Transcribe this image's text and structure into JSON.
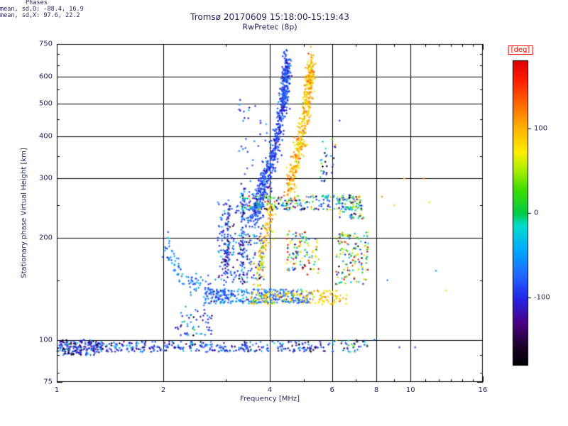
{
  "page": {
    "background": "#ffffff"
  },
  "colors": {
    "text": "#262660",
    "grid": "#000000",
    "frame": "#000000",
    "deg_label": "#ff0000"
  },
  "chart_data": {
    "type": "scatter",
    "title": "Tromsø 20170609 15:18:00-15:19:43",
    "subtitle": "RwPretec (8p)",
    "xlabel": "Frequency [MHz]",
    "ylabel": "Stationary phase Virtual Height [km]",
    "x_scale": "log",
    "y_scale": "log",
    "xlim": [
      1,
      16
    ],
    "ylim": [
      75,
      750
    ],
    "x_ticks": [
      1,
      2,
      4,
      6,
      8,
      10,
      16
    ],
    "x_gridlines": [
      2,
      4,
      6,
      8,
      10
    ],
    "x_minor_ticks": [
      3,
      5,
      7,
      9,
      11,
      12,
      13,
      14,
      15
    ],
    "y_ticks": [
      75,
      100,
      200,
      300,
      400,
      500,
      600,
      750
    ],
    "y_gridlines": [
      100,
      200,
      300,
      400,
      500,
      600
    ],
    "y_minor_ticks": [
      80,
      90,
      150,
      250,
      350,
      450,
      550,
      650,
      700
    ],
    "grid": true,
    "legend_position": "none",
    "stats": {
      "header": "Phases",
      "line_o": "mean, sd,O: -88.4, 16.9",
      "line_x": "mean, sd,X:  97.6, 22.2"
    },
    "colorbar": {
      "label": "[deg]",
      "min": -180,
      "max": 180,
      "ticks": [
        100,
        0,
        -100
      ],
      "stops": [
        [
          0.0,
          "#000000"
        ],
        [
          0.06,
          "#1a0026"
        ],
        [
          0.14,
          "#4b0082"
        ],
        [
          0.22,
          "#2424e6"
        ],
        [
          0.3,
          "#1e6aff"
        ],
        [
          0.38,
          "#00aaff"
        ],
        [
          0.46,
          "#00ddcc"
        ],
        [
          0.5,
          "#00cc44"
        ],
        [
          0.58,
          "#44dd00"
        ],
        [
          0.64,
          "#aaee00"
        ],
        [
          0.7,
          "#ffee00"
        ],
        [
          0.78,
          "#ffb300"
        ],
        [
          0.86,
          "#ff6600"
        ],
        [
          0.93,
          "#ff2200"
        ],
        [
          1.0,
          "#dd0000"
        ]
      ]
    },
    "traces": [
      {
        "name": "e-region-band",
        "kind": "band",
        "n": 380,
        "f": [
          1.0,
          5.9
        ],
        "h": [
          92,
          99
        ],
        "phase": {
          "mean": -95,
          "sd": 35
        }
      },
      {
        "name": "e-region-left-cluster",
        "kind": "band",
        "n": 140,
        "f": [
          1.0,
          1.35
        ],
        "h": [
          90,
          100
        ],
        "phase": {
          "mean": -110,
          "sd": 40
        }
      },
      {
        "name": "e-band-right-ext",
        "kind": "band",
        "n": 40,
        "f": [
          5.9,
          7.6
        ],
        "h": [
          92,
          100
        ],
        "phase": {
          "mean": -60,
          "sd": 70
        }
      },
      {
        "name": "low-scatter-2mhz",
        "kind": "band",
        "n": 55,
        "f": [
          2.15,
          2.75
        ],
        "h": [
          103,
          126
        ],
        "phase": {
          "mean": -100,
          "sd": 45
        }
      },
      {
        "name": "descending-curve",
        "kind": "path",
        "n": 90,
        "anchors": [
          [
            2.02,
            192
          ],
          [
            2.1,
            174
          ],
          [
            2.2,
            160
          ],
          [
            2.35,
            150
          ],
          [
            2.55,
            143
          ],
          [
            2.8,
            138
          ]
        ],
        "f_jitter": 0.006,
        "h_jitter": 0.02,
        "phase": {
          "mean": -62,
          "sd": 18
        }
      },
      {
        "name": "mid-band-cyan",
        "kind": "band",
        "n": 300,
        "f": [
          2.6,
          5.2
        ],
        "h": [
          128,
          141
        ],
        "phase": {
          "mean": -70,
          "sd": 28
        }
      },
      {
        "name": "mid-band-yellow",
        "kind": "band",
        "n": 150,
        "f": [
          3.5,
          6.6
        ],
        "h": [
          127,
          140
        ],
        "phase": {
          "mean": 85,
          "sd": 30
        }
      },
      {
        "name": "f-cloud",
        "kind": "band",
        "n": 240,
        "f": [
          2.85,
          3.85
        ],
        "h": [
          148,
          255
        ],
        "phase": {
          "mean": -88,
          "sd": 35
        }
      },
      {
        "name": "streak-3-0",
        "kind": "path",
        "n": 70,
        "anchors": [
          [
            3.02,
            150
          ],
          [
            3.05,
            230
          ]
        ],
        "f_jitter": 0.004,
        "h_jitter": 0.03,
        "phase": {
          "mean": -95,
          "sd": 28
        }
      },
      {
        "name": "streak-3-35",
        "kind": "path",
        "n": 70,
        "anchors": [
          [
            3.33,
            150
          ],
          [
            3.38,
            262
          ]
        ],
        "f_jitter": 0.004,
        "h_jitter": 0.03,
        "phase": {
          "mean": -90,
          "sd": 28
        }
      },
      {
        "name": "yellow-lower-branch",
        "kind": "path",
        "n": 120,
        "anchors": [
          [
            3.62,
            148
          ],
          [
            3.75,
            165
          ],
          [
            3.88,
            190
          ],
          [
            3.98,
            225
          ],
          [
            4.06,
            258
          ]
        ],
        "f_jitter": 0.006,
        "h_jitter": 0.03,
        "phase": {
          "mean": 88,
          "sd": 28
        }
      },
      {
        "name": "o-mode-trace",
        "kind": "path",
        "n": 640,
        "anchors": [
          [
            3.55,
            235
          ],
          [
            3.7,
            258
          ],
          [
            3.85,
            285
          ],
          [
            3.98,
            315
          ],
          [
            4.1,
            352
          ],
          [
            4.2,
            395
          ],
          [
            4.28,
            440
          ],
          [
            4.35,
            490
          ],
          [
            4.4,
            540
          ],
          [
            4.44,
            585
          ],
          [
            4.47,
            625
          ],
          [
            4.49,
            655
          ]
        ],
        "f_jitter": 0.006,
        "h_jitter": 0.025,
        "phase": {
          "mean": -88,
          "sd": 17
        }
      },
      {
        "name": "x-mode-trace",
        "kind": "path",
        "n": 430,
        "anchors": [
          [
            4.5,
            268
          ],
          [
            4.62,
            300
          ],
          [
            4.75,
            340
          ],
          [
            4.87,
            385
          ],
          [
            4.97,
            432
          ],
          [
            5.05,
            480
          ],
          [
            5.11,
            528
          ],
          [
            5.16,
            575
          ],
          [
            5.2,
            615
          ],
          [
            5.22,
            640
          ]
        ],
        "f_jitter": 0.006,
        "h_jitter": 0.025,
        "phase": {
          "mean": 97,
          "sd": 22
        }
      },
      {
        "name": "o-left-sparse",
        "kind": "band",
        "n": 40,
        "f": [
          3.25,
          3.95
        ],
        "h": [
          255,
          520
        ],
        "phase": {
          "mean": -85,
          "sd": 25
        }
      },
      {
        "name": "band-250",
        "kind": "band",
        "n": 230,
        "f": [
          3.3,
          7.2
        ],
        "h": [
          242,
          268
        ],
        "phase": {
          "mean": -30,
          "sd": 85
        }
      },
      {
        "name": "cluster-mid",
        "kind": "band",
        "n": 110,
        "f": [
          4.45,
          5.5
        ],
        "h": [
          155,
          210
        ],
        "phase": {
          "mean": 20,
          "sd": 90
        }
      },
      {
        "name": "cluster-right-low",
        "kind": "band",
        "n": 150,
        "f": [
          6.15,
          7.6
        ],
        "h": [
          145,
          210
        ],
        "phase": {
          "mean": 20,
          "sd": 90
        }
      },
      {
        "name": "cluster-right-mid",
        "kind": "band",
        "n": 60,
        "f": [
          6.3,
          7.4
        ],
        "h": [
          228,
          266
        ],
        "phase": {
          "mean": 0,
          "sd": 90
        }
      },
      {
        "name": "blob-6mhz",
        "kind": "band",
        "n": 30,
        "f": [
          5.55,
          6.15
        ],
        "h": [
          290,
          400
        ],
        "phase": {
          "mean": -55,
          "sd": 65
        }
      },
      {
        "name": "sparse-right",
        "kind": "points",
        "points": [
          [
            8.3,
            265,
            120
          ],
          [
            8.6,
            150,
            -60
          ],
          [
            9.0,
            250,
            90
          ],
          [
            9.3,
            95,
            -85
          ],
          [
            9.6,
            300,
            100
          ],
          [
            10.3,
            95,
            -90
          ],
          [
            10.9,
            300,
            130
          ],
          [
            11.3,
            255,
            80
          ],
          [
            11.8,
            160,
            -50
          ],
          [
            6.3,
            445,
            -90
          ],
          [
            7.9,
            100,
            -70
          ],
          [
            12.6,
            140,
            60
          ]
        ]
      }
    ]
  }
}
